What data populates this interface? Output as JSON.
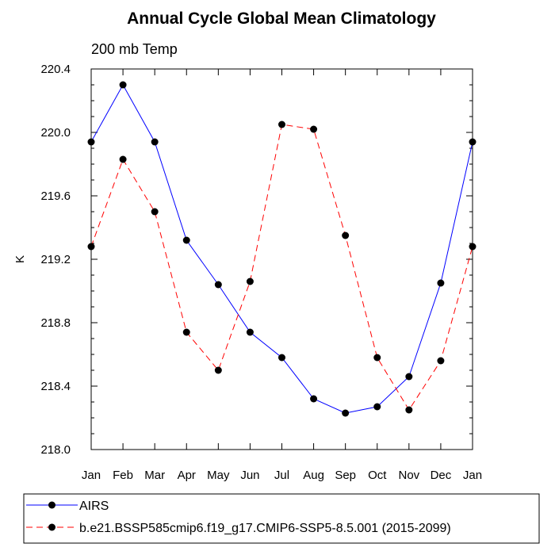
{
  "chart_data": {
    "type": "line",
    "title": "Annual Cycle Global Mean Climatology",
    "subtitle": "200 mb Temp",
    "ylabel": "K",
    "xlabel": "",
    "categories": [
      "Jan",
      "Feb",
      "Mar",
      "Apr",
      "May",
      "Jun",
      "Jul",
      "Aug",
      "Sep",
      "Oct",
      "Nov",
      "Dec",
      "Jan"
    ],
    "ylim": [
      218.0,
      220.4
    ],
    "yticks": [
      "218.0",
      "218.4",
      "218.8",
      "219.2",
      "219.6",
      "220.0",
      "220.4"
    ],
    "grid": false,
    "legend_position": "bottom-left, below plot",
    "series": [
      {
        "name": "AIRS",
        "color": "#0000ff",
        "line_style": "solid",
        "marker": "filled-circle",
        "values": [
          219.94,
          220.3,
          219.94,
          219.32,
          219.04,
          218.74,
          218.58,
          218.32,
          218.23,
          218.27,
          218.46,
          219.05,
          219.94
        ]
      },
      {
        "name": "b.e21.BSSP585cmip6.f19_g17.CMIP6-SSP5-8.5.001 (2015-2099)",
        "color": "#ff0000",
        "line_style": "dashed",
        "marker": "filled-circle",
        "values": [
          219.28,
          219.83,
          219.5,
          218.74,
          218.5,
          219.06,
          220.05,
          220.02,
          219.35,
          218.58,
          218.25,
          218.56,
          219.28
        ]
      }
    ]
  }
}
